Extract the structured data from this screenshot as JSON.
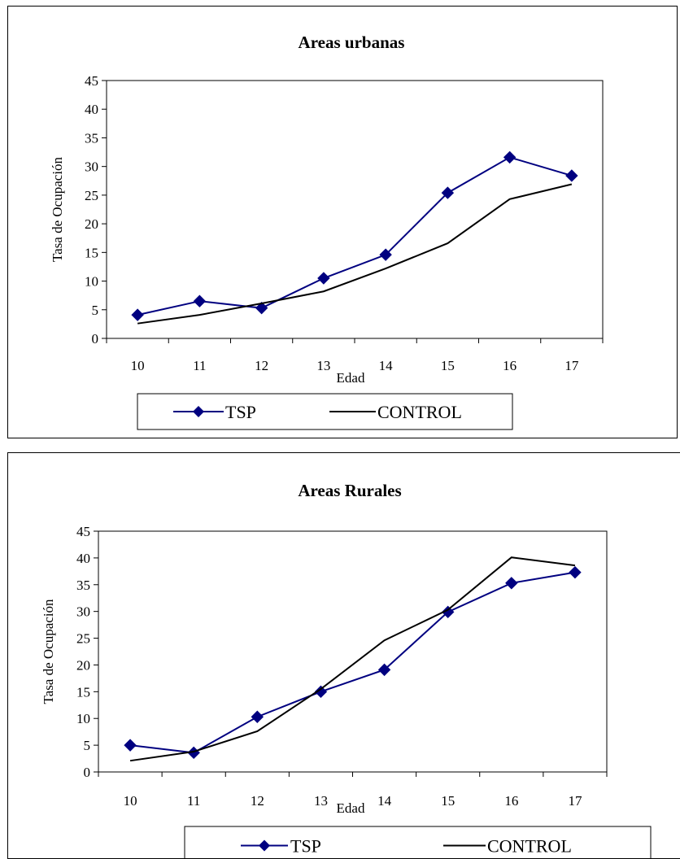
{
  "colors": {
    "tsp": "#000080",
    "control": "#000000",
    "axis": "#000000"
  },
  "chart_data": [
    {
      "type": "line",
      "title": "Areas urbanas",
      "xlabel": "Edad",
      "ylabel": "Tasa de Ocupación",
      "categories": [
        "10",
        "11",
        "12",
        "13",
        "14",
        "15",
        "16",
        "17"
      ],
      "ylim": [
        0,
        45
      ],
      "yticks": [
        "0",
        "5",
        "10",
        "15",
        "20",
        "25",
        "30",
        "35",
        "40",
        "45"
      ],
      "grid": false,
      "legend": "bottom",
      "series": [
        {
          "name": "TSP",
          "marker": "diamond",
          "values": [
            4.1,
            6.5,
            5.3,
            10.5,
            14.6,
            25.4,
            31.6,
            28.4
          ]
        },
        {
          "name": "CONTROL",
          "marker": "none",
          "values": [
            2.6,
            4.1,
            6.1,
            8.2,
            12.2,
            16.6,
            24.3,
            26.9
          ]
        }
      ]
    },
    {
      "type": "line",
      "title": "Areas Rurales",
      "xlabel": "Edad",
      "ylabel": "Tasa de Ocupación",
      "categories": [
        "10",
        "11",
        "12",
        "13",
        "14",
        "15",
        "16",
        "17"
      ],
      "ylim": [
        0,
        45
      ],
      "yticks": [
        "0",
        "5",
        "10",
        "15",
        "20",
        "25",
        "30",
        "35",
        "40",
        "45"
      ],
      "grid": false,
      "legend": "bottom",
      "series": [
        {
          "name": "TSP",
          "marker": "diamond",
          "values": [
            5.0,
            3.6,
            10.3,
            15.0,
            19.1,
            29.9,
            35.3,
            37.3
          ]
        },
        {
          "name": "CONTROL",
          "marker": "none",
          "values": [
            2.1,
            3.8,
            7.6,
            15.5,
            24.6,
            30.3,
            40.1,
            38.6
          ]
        }
      ]
    }
  ]
}
